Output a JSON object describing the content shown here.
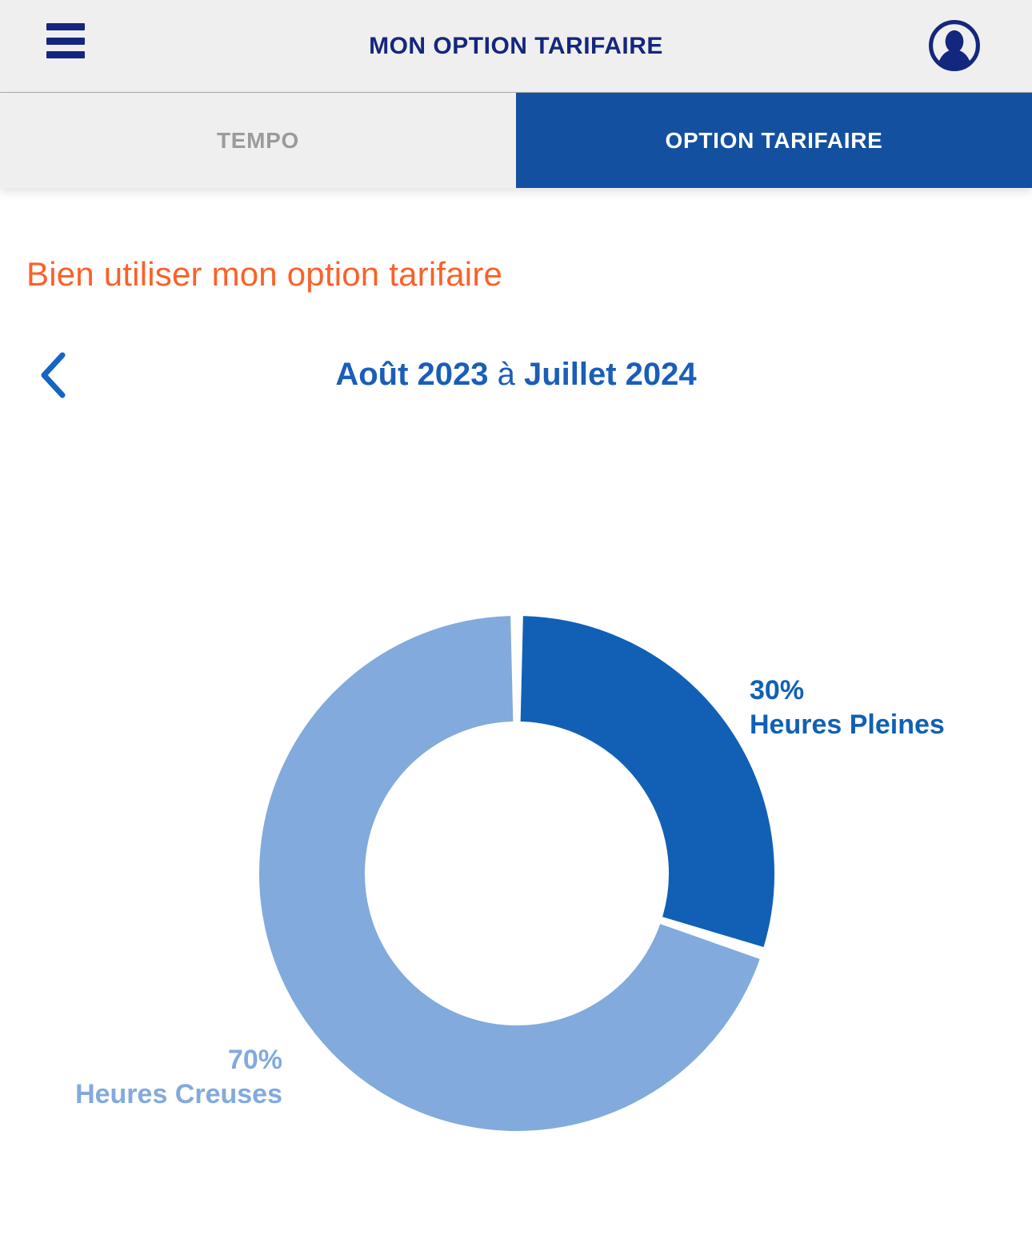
{
  "header": {
    "title": "MON OPTION TARIFAIRE",
    "menu_icon": "hamburger-icon",
    "avatar_icon": "user-avatar-icon"
  },
  "tabs": [
    {
      "label": "TEMPO",
      "active": false
    },
    {
      "label": "OPTION TARIFAIRE",
      "active": true
    }
  ],
  "main": {
    "heading": "Bien utiliser mon option tarifaire",
    "period": {
      "start": "Août 2023",
      "connector": "à",
      "end": "Juillet 2024"
    },
    "back_icon": "chevron-left-icon"
  },
  "chart_data": {
    "type": "pie",
    "donut": true,
    "start_angle_deg": 0,
    "direction": "clockwise",
    "legend_position": "none",
    "categories": [
      "Heures Pleines",
      "Heures Creuses"
    ],
    "values": [
      30,
      70
    ],
    "slices": [
      {
        "name": "Heures Pleines",
        "value": 30,
        "label_pct": "30%",
        "color": "#1160B6"
      },
      {
        "name": "Heures Creuses",
        "value": 70,
        "label_pct": "70%",
        "color": "#82AADC"
      }
    ]
  },
  "colors": {
    "navy": "#14277E",
    "tab_active_bg": "#1450A0",
    "tab_inactive_text": "#9B9B9B",
    "heading_orange": "#FB6128",
    "period_blue": "#1A5EB8",
    "chevron_blue": "#1565C4",
    "header_bg": "#F0EFEF"
  }
}
